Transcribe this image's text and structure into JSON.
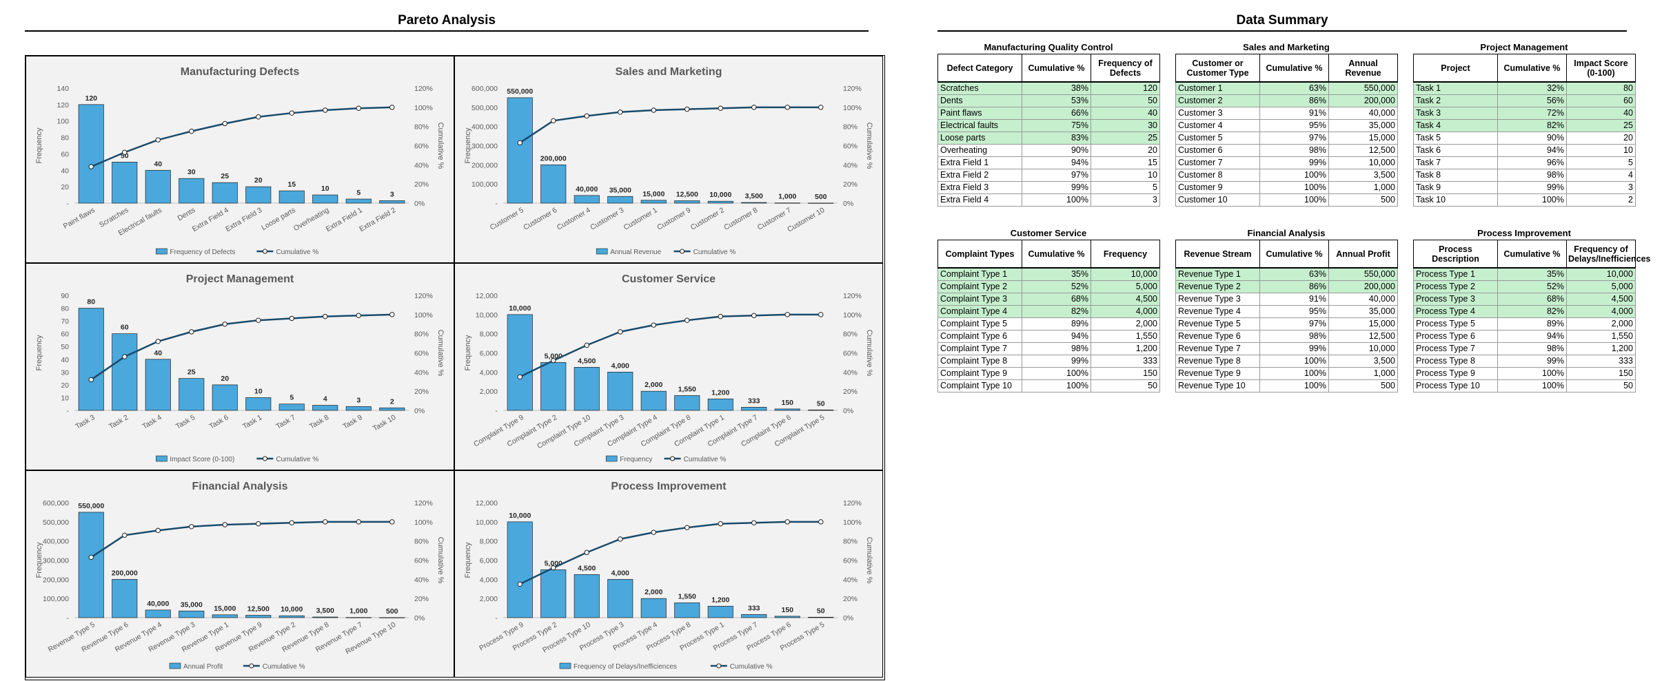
{
  "pareto_title": "Pareto Analysis",
  "summary_title": "Data Summary",
  "colors": {
    "bar": "#4aa8dc",
    "line": "#1a4a6b",
    "highlight": "#c6efce",
    "panel_bg": "#f2f2f2"
  },
  "chart_data": [
    {
      "type": "bar",
      "title": "Manufacturing Defects",
      "ylabel": "Frequency",
      "y2label": "Cumulative %",
      "ylim": [
        0,
        140
      ],
      "yticks": [
        "-",
        "20",
        "40",
        "60",
        "80",
        "100",
        "120",
        "140"
      ],
      "categories": [
        "Paint flaws",
        "Scratches",
        "Electrical faults",
        "Dents",
        "Extra Field 4",
        "Extra Field 3",
        "Loose parts",
        "Overheating",
        "Extra Field 1",
        "Extra Field 2"
      ],
      "values": [
        120,
        50,
        40,
        30,
        25,
        20,
        15,
        10,
        5,
        3
      ],
      "value_labels": [
        "120",
        "50",
        "40",
        "30",
        "25",
        "20",
        "15",
        "10",
        "5",
        "3"
      ],
      "cumulative": [
        38,
        53,
        66,
        75,
        83,
        90,
        94,
        97,
        99,
        100
      ],
      "series": [
        {
          "name": "Frequency of Defects"
        },
        {
          "name": "Cumulative %"
        }
      ]
    },
    {
      "type": "bar",
      "title": "Sales and Marketing",
      "ylabel": "Frequency",
      "y2label": "Cumulative %",
      "ylim": [
        0,
        600000
      ],
      "yticks": [
        "-",
        "100,000",
        "200,000",
        "300,000",
        "400,000",
        "500,000",
        "600,000"
      ],
      "categories": [
        "Customer 5",
        "Customer 6",
        "Customer 4",
        "Customer 3",
        "Customer 1",
        "Customer 9",
        "Customer 2",
        "Customer 8",
        "Customer 7",
        "Customer 10"
      ],
      "values": [
        550000,
        200000,
        40000,
        35000,
        15000,
        12500,
        10000,
        3500,
        1000,
        500
      ],
      "value_labels": [
        "550,000",
        "200,000",
        "40,000",
        "35,000",
        "15,000",
        "12,500",
        "10,000",
        "3,500",
        "1,000",
        "500"
      ],
      "cumulative": [
        63,
        86,
        91,
        95,
        97,
        98,
        99,
        100,
        100,
        100
      ],
      "series": [
        {
          "name": "Annual Revenue"
        },
        {
          "name": "Cumulative %"
        }
      ]
    },
    {
      "type": "bar",
      "title": "Project Management",
      "ylabel": "Frequency",
      "y2label": "Cumulative %",
      "ylim": [
        0,
        90
      ],
      "yticks": [
        "-",
        "10",
        "20",
        "30",
        "40",
        "50",
        "60",
        "70",
        "80",
        "90"
      ],
      "categories": [
        "Task 3",
        "Task 2",
        "Task 4",
        "Task 5",
        "Task 6",
        "Task 1",
        "Task 7",
        "Task 8",
        "Task 9",
        "Task 10"
      ],
      "values": [
        80,
        60,
        40,
        25,
        20,
        10,
        5,
        4,
        3,
        2
      ],
      "value_labels": [
        "80",
        "60",
        "40",
        "25",
        "20",
        "10",
        "5",
        "4",
        "3",
        "2"
      ],
      "cumulative": [
        32,
        56,
        72,
        82,
        90,
        94,
        96,
        98,
        99,
        100
      ],
      "series": [
        {
          "name": "Impact Score (0-100)"
        },
        {
          "name": "Cumulative %"
        }
      ]
    },
    {
      "type": "bar",
      "title": "Customer Service",
      "ylabel": "Frequency",
      "y2label": "Cumulative %",
      "ylim": [
        0,
        12000
      ],
      "yticks": [
        "-",
        "2,000",
        "4,000",
        "6,000",
        "8,000",
        "10,000",
        "12,000"
      ],
      "categories": [
        "Complaint Type 9",
        "Complaint Type 2",
        "Complaint Type 10",
        "Complaint Type 3",
        "Complaint Type 4",
        "Complaint Type 8",
        "Complaint Type 1",
        "Complaint Type 7",
        "Complaint Type 6",
        "Complaint Type 5"
      ],
      "values": [
        10000,
        5000,
        4500,
        4000,
        2000,
        1550,
        1200,
        333,
        150,
        50
      ],
      "value_labels": [
        "10,000",
        "5,000",
        "4,500",
        "4,000",
        "2,000",
        "1,550",
        "1,200",
        "333",
        "150",
        "50"
      ],
      "cumulative": [
        35,
        52,
        68,
        82,
        89,
        94,
        98,
        99,
        100,
        100
      ],
      "series": [
        {
          "name": "Frequency"
        },
        {
          "name": "Cumulative %"
        }
      ]
    },
    {
      "type": "bar",
      "title": "Financial Analysis",
      "ylabel": "Frequency",
      "y2label": "Cumulative %",
      "ylim": [
        0,
        600000
      ],
      "yticks": [
        "-",
        "100,000",
        "200,000",
        "300,000",
        "400,000",
        "500,000",
        "600,000"
      ],
      "categories": [
        "Revenue Type 5",
        "Revenue Type 6",
        "Revenue Type 4",
        "Revenue Type 3",
        "Revenue Type 1",
        "Revenue Type 9",
        "Revenue Type 2",
        "Revenue Type 8",
        "Revenue Type 7",
        "Revenue Type 10"
      ],
      "values": [
        550000,
        200000,
        40000,
        35000,
        15000,
        12500,
        10000,
        3500,
        1000,
        500
      ],
      "value_labels": [
        "550,000",
        "200,000",
        "40,000",
        "35,000",
        "15,000",
        "12,500",
        "10,000",
        "3,500",
        "1,000",
        "500"
      ],
      "cumulative": [
        63,
        86,
        91,
        95,
        97,
        98,
        99,
        100,
        100,
        100
      ],
      "series": [
        {
          "name": "Annual Profit"
        },
        {
          "name": "Cumulative %"
        }
      ]
    },
    {
      "type": "bar",
      "title": "Process Improvement",
      "ylabel": "Frequency",
      "y2label": "Cumulative %",
      "ylim": [
        0,
        12000
      ],
      "yticks": [
        "-",
        "2,000",
        "4,000",
        "6,000",
        "8,000",
        "10,000",
        "12,000"
      ],
      "categories": [
        "Process Type 9",
        "Process Type 2",
        "Process Type 10",
        "Process Type 3",
        "Process Type 4",
        "Process Type 8",
        "Process Type 1",
        "Process Type 7",
        "Process Type 6",
        "Process Type 5"
      ],
      "values": [
        10000,
        5000,
        4500,
        4000,
        2000,
        1550,
        1200,
        333,
        150,
        50
      ],
      "value_labels": [
        "10,000",
        "5,000",
        "4,500",
        "4,000",
        "2,000",
        "1,550",
        "1,200",
        "333",
        "150",
        "50"
      ],
      "cumulative": [
        35,
        52,
        68,
        82,
        89,
        94,
        98,
        99,
        100,
        100
      ],
      "series": [
        {
          "name": "Frequency of Delays/Inefficiences"
        },
        {
          "name": "Cumulative %"
        }
      ]
    }
  ],
  "y2ticks": [
    "0%",
    "20%",
    "40%",
    "60%",
    "80%",
    "100%",
    "120%"
  ],
  "tables": [
    {
      "caption": "Manufacturing Quality Control",
      "headers": [
        "Defect Category",
        "Cumulative %",
        "Frequency of Defects"
      ],
      "highlight_rows": 5,
      "rows": [
        [
          "Scratches",
          "38%",
          "120"
        ],
        [
          "Dents",
          "53%",
          "50"
        ],
        [
          "Paint flaws",
          "66%",
          "40"
        ],
        [
          "Electrical faults",
          "75%",
          "30"
        ],
        [
          "Loose parts",
          "83%",
          "25"
        ],
        [
          "Overheating",
          "90%",
          "20"
        ],
        [
          "Extra Field 1",
          "94%",
          "15"
        ],
        [
          "Extra Field 2",
          "97%",
          "10"
        ],
        [
          "Extra Field 3",
          "99%",
          "5"
        ],
        [
          "Extra Field 4",
          "100%",
          "3"
        ]
      ]
    },
    {
      "caption": "Sales and Marketing",
      "headers": [
        "Customer or Customer Type",
        "Cumulative %",
        "Annual Revenue"
      ],
      "highlight_rows": 2,
      "rows": [
        [
          "Customer 1",
          "63%",
          "550,000"
        ],
        [
          "Customer 2",
          "86%",
          "200,000"
        ],
        [
          "Customer 3",
          "91%",
          "40,000"
        ],
        [
          "Customer 4",
          "95%",
          "35,000"
        ],
        [
          "Customer 5",
          "97%",
          "15,000"
        ],
        [
          "Customer 6",
          "98%",
          "12,500"
        ],
        [
          "Customer 7",
          "99%",
          "10,000"
        ],
        [
          "Customer 8",
          "100%",
          "3,500"
        ],
        [
          "Customer 9",
          "100%",
          "1,000"
        ],
        [
          "Customer 10",
          "100%",
          "500"
        ]
      ]
    },
    {
      "caption": "Project Management",
      "headers": [
        "Project",
        "Cumulative %",
        "Impact Score (0-100)"
      ],
      "highlight_rows": 4,
      "rows": [
        [
          "Task 1",
          "32%",
          "80"
        ],
        [
          "Task 2",
          "56%",
          "60"
        ],
        [
          "Task 3",
          "72%",
          "40"
        ],
        [
          "Task 4",
          "82%",
          "25"
        ],
        [
          "Task 5",
          "90%",
          "20"
        ],
        [
          "Task 6",
          "94%",
          "10"
        ],
        [
          "Task 7",
          "96%",
          "5"
        ],
        [
          "Task 8",
          "98%",
          "4"
        ],
        [
          "Task 9",
          "99%",
          "3"
        ],
        [
          "Task 10",
          "100%",
          "2"
        ]
      ]
    },
    {
      "caption": "Customer Service",
      "headers": [
        "Complaint Types",
        "Cumulative %",
        "Frequency"
      ],
      "highlight_rows": 4,
      "rows": [
        [
          "Complaint Type 1",
          "35%",
          "10,000"
        ],
        [
          "Complaint Type 2",
          "52%",
          "5,000"
        ],
        [
          "Complaint Type 3",
          "68%",
          "4,500"
        ],
        [
          "Complaint Type 4",
          "82%",
          "4,000"
        ],
        [
          "Complaint Type 5",
          "89%",
          "2,000"
        ],
        [
          "Complaint Type 6",
          "94%",
          "1,550"
        ],
        [
          "Complaint Type 7",
          "98%",
          "1,200"
        ],
        [
          "Complaint Type 8",
          "99%",
          "333"
        ],
        [
          "Complaint Type 9",
          "100%",
          "150"
        ],
        [
          "Complaint Type 10",
          "100%",
          "50"
        ]
      ]
    },
    {
      "caption": "Financial Analysis",
      "headers": [
        "Revenue Stream",
        "Cumulative %",
        "Annual Profit"
      ],
      "highlight_rows": 2,
      "rows": [
        [
          "Revenue Type 1",
          "63%",
          "550,000"
        ],
        [
          "Revenue Type 2",
          "86%",
          "200,000"
        ],
        [
          "Revenue Type 3",
          "91%",
          "40,000"
        ],
        [
          "Revenue Type 4",
          "95%",
          "35,000"
        ],
        [
          "Revenue Type 5",
          "97%",
          "15,000"
        ],
        [
          "Revenue Type 6",
          "98%",
          "12,500"
        ],
        [
          "Revenue Type 7",
          "99%",
          "10,000"
        ],
        [
          "Revenue Type 8",
          "100%",
          "3,500"
        ],
        [
          "Revenue Type 9",
          "100%",
          "1,000"
        ],
        [
          "Revenue Type 10",
          "100%",
          "500"
        ]
      ]
    },
    {
      "caption": "Process Improvement",
      "headers": [
        "Process Description",
        "Cumulative %",
        "Frequency of Delays/Inefficiences"
      ],
      "highlight_rows": 4,
      "rows": [
        [
          "Process Type 1",
          "35%",
          "10,000"
        ],
        [
          "Process Type 2",
          "52%",
          "5,000"
        ],
        [
          "Process Type 3",
          "68%",
          "4,500"
        ],
        [
          "Process Type 4",
          "82%",
          "4,000"
        ],
        [
          "Process Type 5",
          "89%",
          "2,000"
        ],
        [
          "Process Type 6",
          "94%",
          "1,550"
        ],
        [
          "Process Type 7",
          "98%",
          "1,200"
        ],
        [
          "Process Type 8",
          "99%",
          "333"
        ],
        [
          "Process Type 9",
          "100%",
          "150"
        ],
        [
          "Process Type 10",
          "100%",
          "50"
        ]
      ]
    }
  ]
}
